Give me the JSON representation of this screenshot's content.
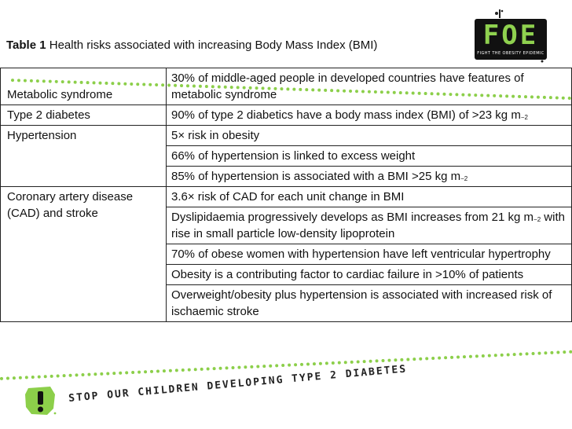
{
  "caption": {
    "label": "Table 1",
    "text": "Health risks associated with increasing Body Mass Index (BMI)"
  },
  "logo": {
    "text": "FOE",
    "tagline": "FIGHT THE OBESITY EPIDEMIC",
    "color": "#8fd14f"
  },
  "rows": [
    {
      "category": "Metabolic syndrome",
      "risk": "30% of middle-aged people in developed countries have features of metabolic syndrome"
    },
    {
      "category": "Type 2 diabetes",
      "risk": "90% of type 2 diabetics have a body mass index (BMI) of >23 kg m",
      "sup": "−2"
    },
    {
      "category": "Hypertension",
      "risk": "5× risk in obesity"
    },
    {
      "risk": "66% of hypertension is linked to excess weight"
    },
    {
      "risk": "85% of hypertension is associated with a BMI >25 kg m",
      "sup": "−2"
    },
    {
      "category": "Coronary artery disease (CAD) and stroke",
      "risk": "3.6× risk of CAD for each unit change in BMI"
    },
    {
      "risk_a": "Dyslipidaemia progressively develops as BMI increases from 21 kg m",
      "sup": "−2",
      "risk_b": " with rise in small particle low-density lipoprotein"
    },
    {
      "risk": "70% of obese women with hypertension have left ventricular hypertrophy"
    },
    {
      "risk": "Obesity is a contributing factor to cardiac failure in >10% of patients"
    },
    {
      "risk": "Overweight/obesity plus hypertension is associated with increased risk of ischaemic stroke"
    }
  ],
  "footer": {
    "slogan": "STOP OUR CHILDREN DEVELOPING TYPE 2 DIABETES",
    "icon": "exclamation-badge-icon"
  },
  "colors": {
    "accent": "#8ccf4a",
    "text": "#111111",
    "border": "#222222"
  }
}
